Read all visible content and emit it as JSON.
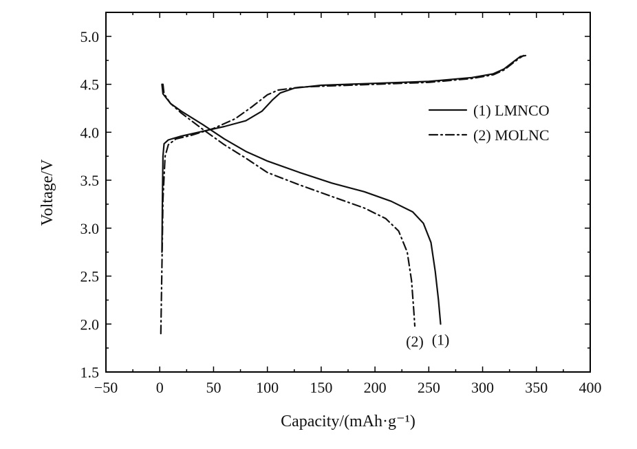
{
  "chart_data": {
    "type": "line",
    "xlabel": "Capacity/(mAh·g⁻¹)",
    "ylabel": "Voltage/V",
    "xlim": [
      -50,
      400
    ],
    "ylim": [
      1.5,
      5.25
    ],
    "xticks": [
      "−50",
      "0",
      "50",
      "100",
      "150",
      "200",
      "250",
      "300",
      "350",
      "400"
    ],
    "yticks": [
      "1.5",
      "2.0",
      "2.5",
      "3.0",
      "3.5",
      "4.0",
      "4.5",
      "5.0"
    ],
    "legend_position": "top-right",
    "series": [
      {
        "name": "(1) LMNCO",
        "style": "solid",
        "end_label": "(1)",
        "charge": [
          [
            2,
            2.75
          ],
          [
            2.5,
            3.3
          ],
          [
            3,
            3.75
          ],
          [
            4,
            3.88
          ],
          [
            8,
            3.92
          ],
          [
            20,
            3.96
          ],
          [
            40,
            4.01
          ],
          [
            60,
            4.06
          ],
          [
            80,
            4.12
          ],
          [
            95,
            4.22
          ],
          [
            105,
            4.34
          ],
          [
            112,
            4.41
          ],
          [
            125,
            4.46
          ],
          [
            150,
            4.49
          ],
          [
            200,
            4.51
          ],
          [
            250,
            4.53
          ],
          [
            290,
            4.57
          ],
          [
            310,
            4.61
          ],
          [
            320,
            4.66
          ],
          [
            328,
            4.73
          ],
          [
            335,
            4.79
          ],
          [
            340,
            4.8
          ]
        ],
        "discharge": [
          [
            2,
            4.5
          ],
          [
            3,
            4.4
          ],
          [
            10,
            4.3
          ],
          [
            20,
            4.22
          ],
          [
            40,
            4.08
          ],
          [
            60,
            3.93
          ],
          [
            80,
            3.8
          ],
          [
            100,
            3.7
          ],
          [
            130,
            3.58
          ],
          [
            160,
            3.47
          ],
          [
            190,
            3.38
          ],
          [
            215,
            3.28
          ],
          [
            235,
            3.17
          ],
          [
            245,
            3.05
          ],
          [
            252,
            2.85
          ],
          [
            256,
            2.55
          ],
          [
            259,
            2.25
          ],
          [
            261,
            2.0
          ]
        ]
      },
      {
        "name": "(2) MOLNC",
        "style": "dashdot",
        "end_label": "(2)",
        "charge": [
          [
            1,
            1.9
          ],
          [
            2,
            2.6
          ],
          [
            3,
            3.3
          ],
          [
            5,
            3.75
          ],
          [
            8,
            3.87
          ],
          [
            15,
            3.93
          ],
          [
            30,
            3.97
          ],
          [
            50,
            4.04
          ],
          [
            70,
            4.14
          ],
          [
            85,
            4.26
          ],
          [
            100,
            4.39
          ],
          [
            110,
            4.44
          ],
          [
            130,
            4.47
          ],
          [
            150,
            4.48
          ],
          [
            200,
            4.5
          ],
          [
            250,
            4.52
          ],
          [
            290,
            4.56
          ],
          [
            310,
            4.6
          ],
          [
            320,
            4.65
          ],
          [
            328,
            4.72
          ],
          [
            334,
            4.77
          ],
          [
            338,
            4.8
          ]
        ],
        "discharge": [
          [
            3,
            4.5
          ],
          [
            4,
            4.4
          ],
          [
            10,
            4.3
          ],
          [
            20,
            4.2
          ],
          [
            40,
            4.03
          ],
          [
            60,
            3.87
          ],
          [
            80,
            3.73
          ],
          [
            100,
            3.58
          ],
          [
            130,
            3.45
          ],
          [
            160,
            3.33
          ],
          [
            190,
            3.21
          ],
          [
            210,
            3.1
          ],
          [
            222,
            2.97
          ],
          [
            230,
            2.75
          ],
          [
            234,
            2.45
          ],
          [
            236,
            2.15
          ],
          [
            237,
            1.98
          ]
        ]
      }
    ]
  }
}
